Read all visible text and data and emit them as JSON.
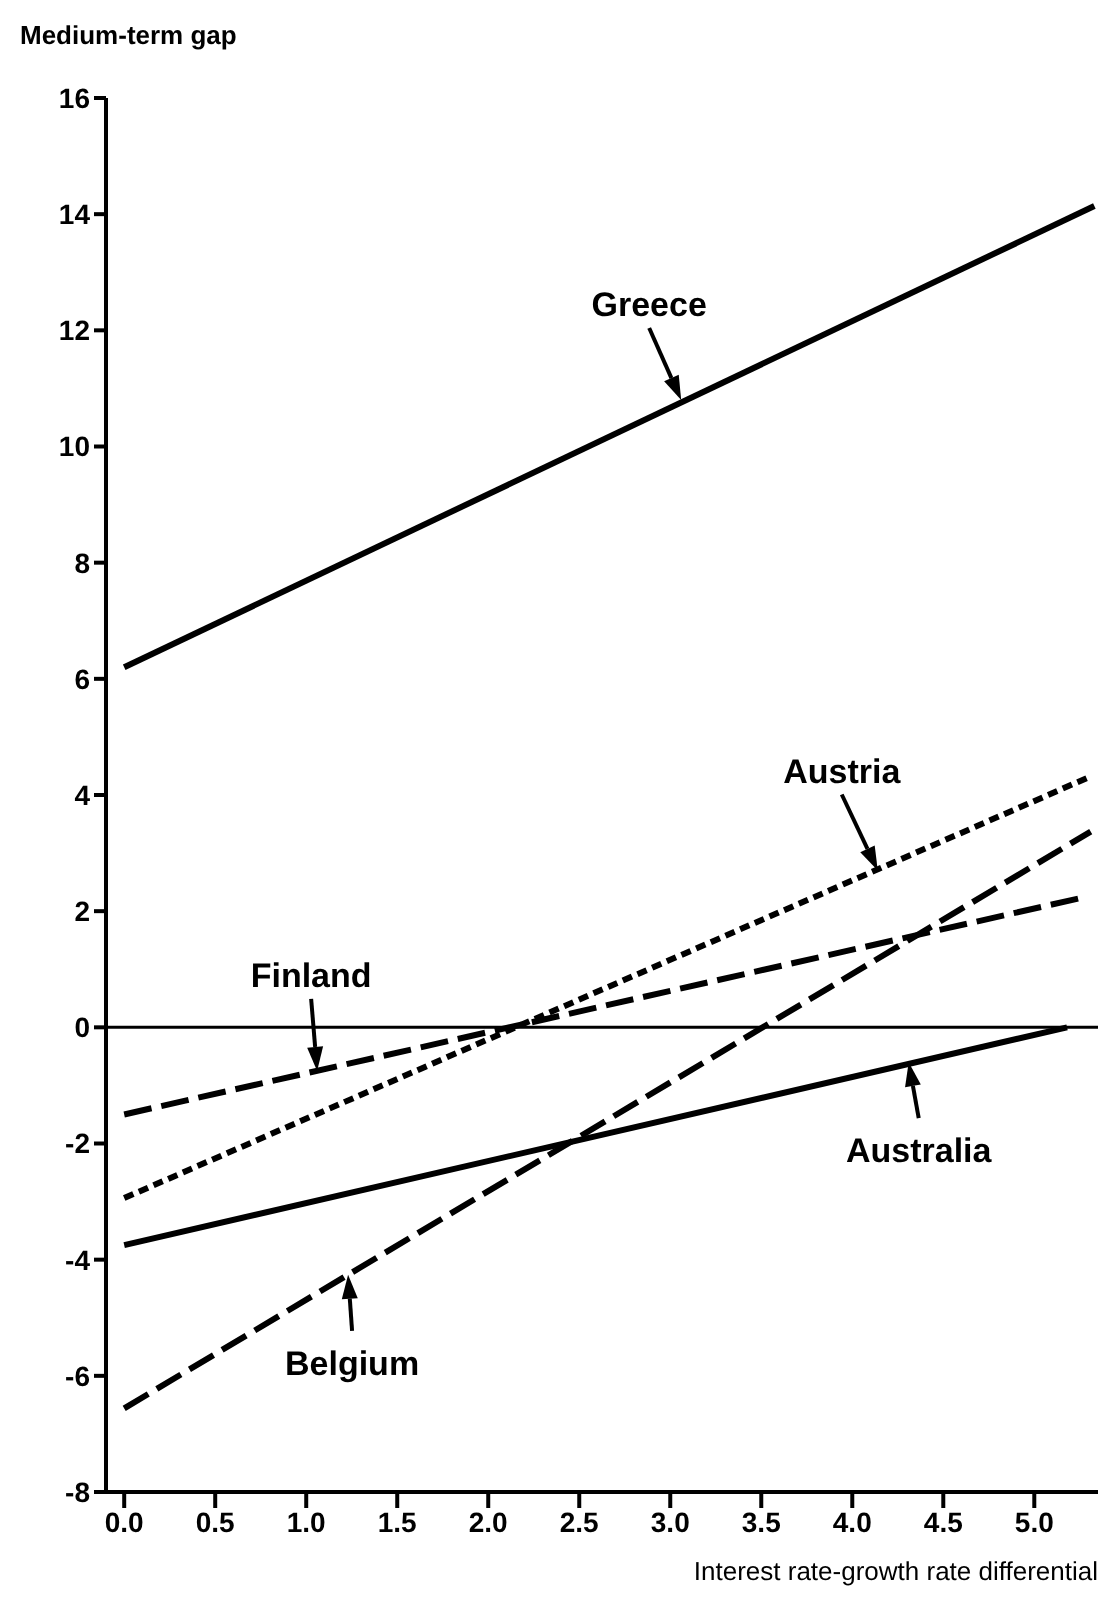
{
  "chart_data": {
    "type": "line",
    "ylabel": "Medium-term gap",
    "xlabel": "Interest rate-growth rate differential",
    "xlim": [
      -0.1,
      5.35
    ],
    "xticks": [
      {
        "value": 0,
        "label": "0.0"
      },
      0.5,
      {
        "value": 1,
        "label": "1.0"
      },
      1.5,
      {
        "value": 2,
        "label": "2.0"
      },
      2.5,
      {
        "value": 3,
        "label": "3.0"
      },
      3.5,
      {
        "value": 4,
        "label": "4.0"
      },
      4.5,
      {
        "value": 5,
        "label": "5.0"
      }
    ],
    "ylim": [
      -8,
      16
    ],
    "yticks": [
      -8,
      -6,
      -4,
      -2,
      0,
      2,
      4,
      6,
      8,
      10,
      12,
      14,
      16
    ],
    "marker": "none",
    "ref_lines": [
      {
        "axis": "y",
        "value": 0,
        "color": "#000000",
        "line_style": "solid"
      }
    ],
    "series": [
      {
        "color": "#000000",
        "line_style": "solid",
        "x": [
          0,
          5.33
        ],
        "values": [
          6.2,
          14.14
        ]
      },
      {
        "color": "#000000",
        "line_style": "dotted",
        "x": [
          0,
          5.31
        ],
        "values": [
          -2.94,
          4.32
        ]
      },
      {
        "color": "#000000",
        "line_style": "dashed",
        "x": [
          0,
          5.26
        ],
        "values": [
          -1.5,
          2.23
        ]
      },
      {
        "color": "#000000",
        "line_style": "solid",
        "x": [
          0,
          5.18
        ],
        "values": [
          -3.75,
          0
        ]
      },
      {
        "color": "#000000",
        "line_style": "dashed",
        "x": [
          0,
          5.31
        ],
        "values": [
          -6.56,
          3.37
        ]
      }
    ],
    "annotations": [
      {
        "text": "Greece",
        "x": 3.06,
        "y": 10.8
      },
      {
        "text": "Austria",
        "x": 4.14,
        "y": 2.7
      },
      {
        "text": "Finland",
        "x": 1.06,
        "y": -0.75
      },
      {
        "text": "Australia",
        "x": 4.31,
        "y": -0.6
      },
      {
        "text": "Belgium",
        "x": 1.23,
        "y": -4.26
      }
    ]
  }
}
